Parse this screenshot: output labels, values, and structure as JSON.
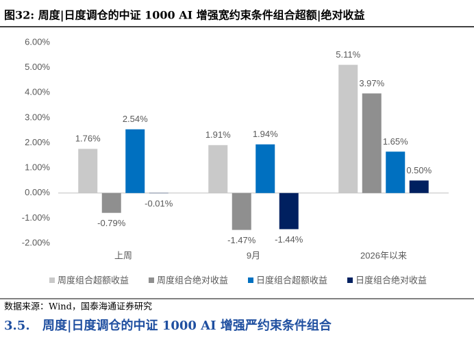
{
  "figure_title": "图32:  周度|日度调仓的中证 1000 AI 增强宽约束条件组合超额|绝对收益",
  "chart_data": {
    "type": "bar",
    "categories": [
      "上周",
      "9月",
      "2026年以来"
    ],
    "series": [
      {
        "name": "周度组合超额收益",
        "color": "#c9c9c9",
        "values": [
          1.76,
          1.91,
          5.11
        ],
        "value_labels": [
          "1.76%",
          "1.91%",
          "5.11%"
        ]
      },
      {
        "name": "周度组合绝对收益",
        "color": "#8f8f8f",
        "values": [
          -0.79,
          -1.47,
          3.97
        ],
        "value_labels": [
          "-0.79%",
          "-1.47%",
          "3.97%"
        ]
      },
      {
        "name": "日度组合超额收益",
        "color": "#0070c0",
        "values": [
          2.54,
          1.94,
          1.65
        ],
        "value_labels": [
          "2.54%",
          "1.94%",
          "1.65%"
        ]
      },
      {
        "name": "日度组合绝对收益",
        "color": "#002060",
        "values": [
          -0.01,
          -1.44,
          0.5
        ],
        "value_labels": [
          "-0.01%",
          "-1.44%",
          "0.50%"
        ]
      }
    ],
    "ylim": [
      -2,
      6
    ],
    "yticks": [
      {
        "value": -2,
        "label": "-2.00%"
      },
      {
        "value": -1,
        "label": "-1.00%"
      },
      {
        "value": 0,
        "label": "0.00%"
      },
      {
        "value": 1,
        "label": "1.00%"
      },
      {
        "value": 2,
        "label": "2.00%"
      },
      {
        "value": 3,
        "label": "3.00%"
      },
      {
        "value": 4,
        "label": "4.00%"
      },
      {
        "value": 5,
        "label": "5.00%"
      },
      {
        "value": 6,
        "label": "6.00%"
      }
    ],
    "grid": false,
    "legend": "bottom"
  },
  "source": "数据来源：Wind，国泰海通证券研究",
  "section": {
    "number": "3.5.",
    "title": "周度|日度调仓的中证 1000 AI 增强严约束条件组合"
  }
}
